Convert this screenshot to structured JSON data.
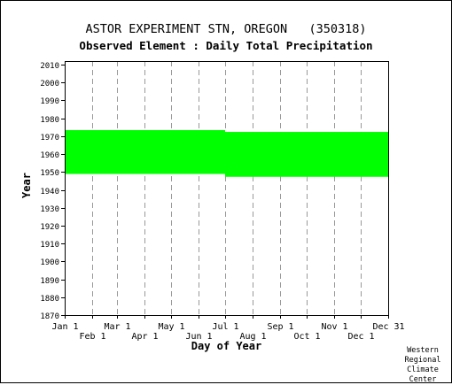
{
  "title": "ASTOR EXPERIMENT STN, OREGON   (350318)",
  "subtitle": "Observed Element : Daily Total Precipitation",
  "credit": [
    "Western",
    "Regional",
    "Climate",
    "Center"
  ],
  "colors": {
    "data": "#00ff00",
    "grid": "#999999",
    "axis": "#000000",
    "background": "#ffffff"
  },
  "chart_data": {
    "type": "area",
    "title": "ASTOR EXPERIMENT STN, OREGON   (350318)",
    "subtitle": "Observed Element : Daily Total Precipitation",
    "xlabel": "Day of Year",
    "ylabel": "Year",
    "xlim": [
      1,
      366
    ],
    "ylim": [
      1870,
      2012
    ],
    "grid": true,
    "x_ticks": [
      {
        "day": 1,
        "label": "Jan 1",
        "row": 0
      },
      {
        "day": 32,
        "label": "Feb 1",
        "row": 1
      },
      {
        "day": 60,
        "label": "Mar 1",
        "row": 0
      },
      {
        "day": 91,
        "label": "Apr 1",
        "row": 1
      },
      {
        "day": 121,
        "label": "May 1",
        "row": 0
      },
      {
        "day": 152,
        "label": "Jun 1",
        "row": 1
      },
      {
        "day": 182,
        "label": "Jul 1",
        "row": 0
      },
      {
        "day": 213,
        "label": "Aug 1",
        "row": 1
      },
      {
        "day": 244,
        "label": "Sep 1",
        "row": 0
      },
      {
        "day": 274,
        "label": "Oct 1",
        "row": 1
      },
      {
        "day": 305,
        "label": "Nov 1",
        "row": 0
      },
      {
        "day": 335,
        "label": "Dec 1",
        "row": 1
      },
      {
        "day": 366,
        "label": "Dec 31",
        "row": 0
      }
    ],
    "y_ticks": [
      1870,
      1880,
      1890,
      1900,
      1910,
      1920,
      1930,
      1940,
      1950,
      1960,
      1970,
      1980,
      1990,
      2000,
      2010
    ],
    "series": [
      {
        "coverage": [
          {
            "start_day": 1,
            "end_day": 182,
            "start_year": 1948.9,
            "end_year": 1973.4
          },
          {
            "start_day": 182,
            "end_day": 366,
            "start_year": 1947.3,
            "end_year": 1972.4
          }
        ]
      }
    ]
  }
}
